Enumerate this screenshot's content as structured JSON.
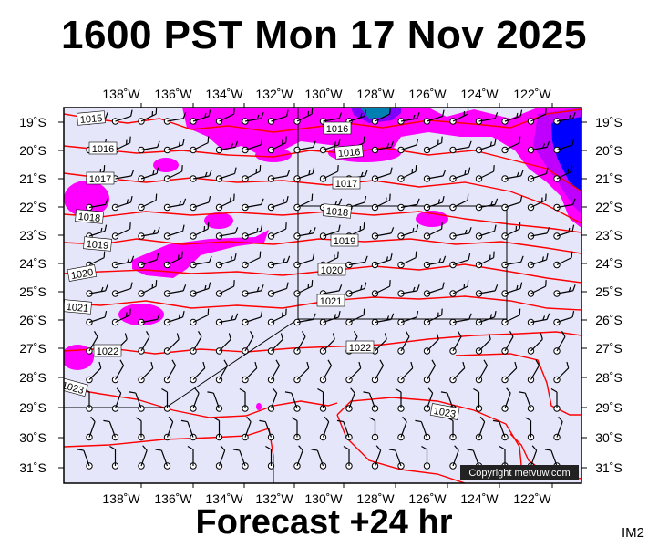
{
  "title": "1600 PST Mon 17 Nov 2025",
  "forecast": "Forecast +24 hr",
  "tag": "IM2",
  "copyright": "Copyright metvuw.com",
  "lon_labels": [
    "138˚W",
    "136˚W",
    "134˚W",
    "132˚W",
    "130˚W",
    "128˚W",
    "126˚W",
    "124˚W",
    "122˚W"
  ],
  "lat_labels": [
    "19˚S",
    "20˚S",
    "21˚S",
    "22˚S",
    "23˚S",
    "24˚S",
    "25˚S",
    "26˚S",
    "27˚S",
    "28˚S",
    "29˚S",
    "30˚S",
    "31˚S"
  ],
  "isobars": [
    {
      "value": 1015,
      "label": "1015"
    },
    {
      "value": 1016,
      "label": "1016"
    },
    {
      "value": 1016,
      "label": "1016"
    },
    {
      "value": 1016,
      "label": "1016"
    },
    {
      "value": 1017,
      "label": "1017"
    },
    {
      "value": 1017,
      "label": "1017"
    },
    {
      "value": 1018,
      "label": "1018"
    },
    {
      "value": 1018,
      "label": "1018"
    },
    {
      "value": 1019,
      "label": "1019"
    },
    {
      "value": 1019,
      "label": "1019"
    },
    {
      "value": 1020,
      "label": "1020"
    },
    {
      "value": 1020,
      "label": "1020"
    },
    {
      "value": 1021,
      "label": "1021"
    },
    {
      "value": 1021,
      "label": "1021"
    },
    {
      "value": 1022,
      "label": "1022"
    },
    {
      "value": 1022,
      "label": "1022"
    },
    {
      "value": 1023,
      "label": "1023"
    },
    {
      "value": 1023,
      "label": "1023"
    }
  ],
  "colors": {
    "ocean": "#e6e6fb",
    "isobar": "#ff0000",
    "rain_light": "#ff00ff",
    "rain_mid": "#c000ff",
    "rain_heavy": "#0000ff",
    "rain_extreme": "#00ff66"
  }
}
